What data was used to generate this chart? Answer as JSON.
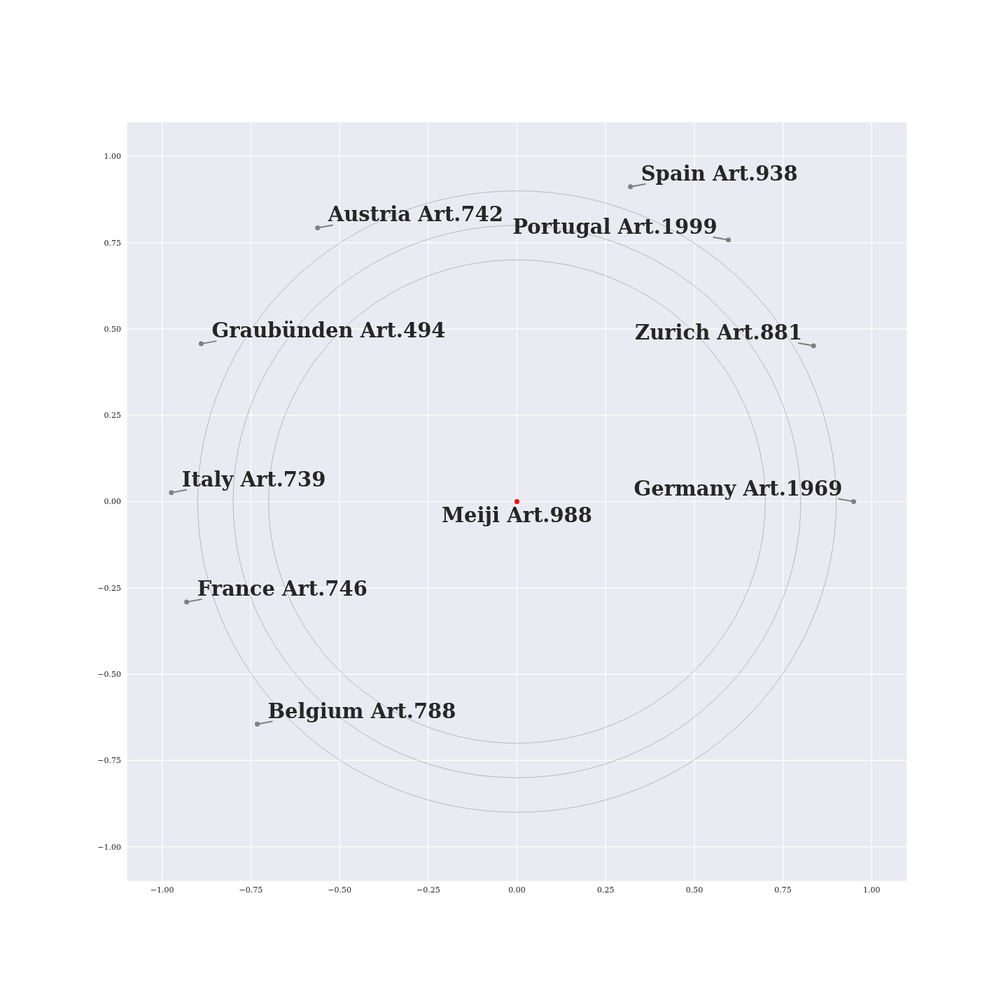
{
  "chart_data": {
    "type": "scatter",
    "xlim": [
      -1.1,
      1.1
    ],
    "ylim": [
      -1.1,
      1.1
    ],
    "xticks": [
      {
        "value": -1,
        "label": "−1.00"
      },
      {
        "value": -0.75,
        "label": "−0.75"
      },
      {
        "value": -0.5,
        "label": "−0.50"
      },
      {
        "value": -0.25,
        "label": "−0.25"
      },
      {
        "value": 0,
        "label": "0.00"
      },
      {
        "value": 0.25,
        "label": "0.25"
      },
      {
        "value": 0.5,
        "label": "0.50"
      },
      {
        "value": 0.75,
        "label": "0.75"
      },
      {
        "value": 1,
        "label": "1.00"
      }
    ],
    "yticks": [
      {
        "value": -1,
        "label": "−1.00"
      },
      {
        "value": -0.75,
        "label": "−0.75"
      },
      {
        "value": -0.5,
        "label": "−0.50"
      },
      {
        "value": -0.25,
        "label": "−0.25"
      },
      {
        "value": 0,
        "label": "0.00"
      },
      {
        "value": 0.25,
        "label": "0.25"
      },
      {
        "value": 0.5,
        "label": "0.50"
      },
      {
        "value": 0.75,
        "label": "0.75"
      },
      {
        "value": 1,
        "label": "1.00"
      }
    ],
    "grid": true,
    "marker": "circle",
    "series": [
      {
        "type": "scatter",
        "color": "#808080",
        "x": [
          0.32,
          -0.562,
          0.596,
          -0.89,
          0.836,
          -0.974,
          0.949,
          -0.931,
          -0.732
        ],
        "values": [
          0.912,
          0.793,
          0.758,
          0.457,
          0.451,
          0.026,
          0,
          -0.291,
          -0.645
        ],
        "value_labels": [
          "Spain Art.938",
          "Austria Art.742",
          "Portugal Art.1999",
          "Graubünden Art.494",
          "Zurich Art.881",
          "Italy Art.739",
          "Germany Art.1969",
          "France Art.746",
          "Belgium Art.788"
        ]
      },
      {
        "type": "scatter",
        "color": "#ff0000",
        "x": [
          0
        ],
        "values": [
          0
        ],
        "value_labels": [
          "Meiji Art.988"
        ]
      }
    ]
  }
}
